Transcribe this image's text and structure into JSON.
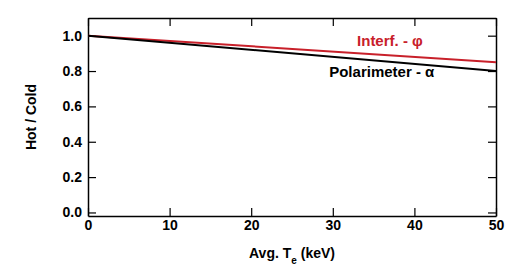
{
  "chart_data": {
    "type": "line",
    "x_label": "Avg. Te (keV)",
    "y_label": "Hot / Cold",
    "x": [
      0,
      50
    ],
    "series": [
      {
        "name": "Interf. - φ",
        "color": "#c8202a",
        "values": [
          1.0,
          0.85
        ]
      },
      {
        "name": "Polarimeter - α",
        "color": "#000000",
        "values": [
          1.0,
          0.8
        ]
      }
    ],
    "xlim": [
      0,
      50
    ],
    "xticks": [
      0,
      10,
      20,
      30,
      40,
      50
    ],
    "ylim": [
      -0.02,
      1.1
    ],
    "yticks": [
      {
        "value": 0,
        "label": "0.0"
      },
      0.2,
      0.4,
      0.6,
      0.8,
      {
        "value": 1,
        "label": "1.0"
      }
    ],
    "grid": false
  }
}
